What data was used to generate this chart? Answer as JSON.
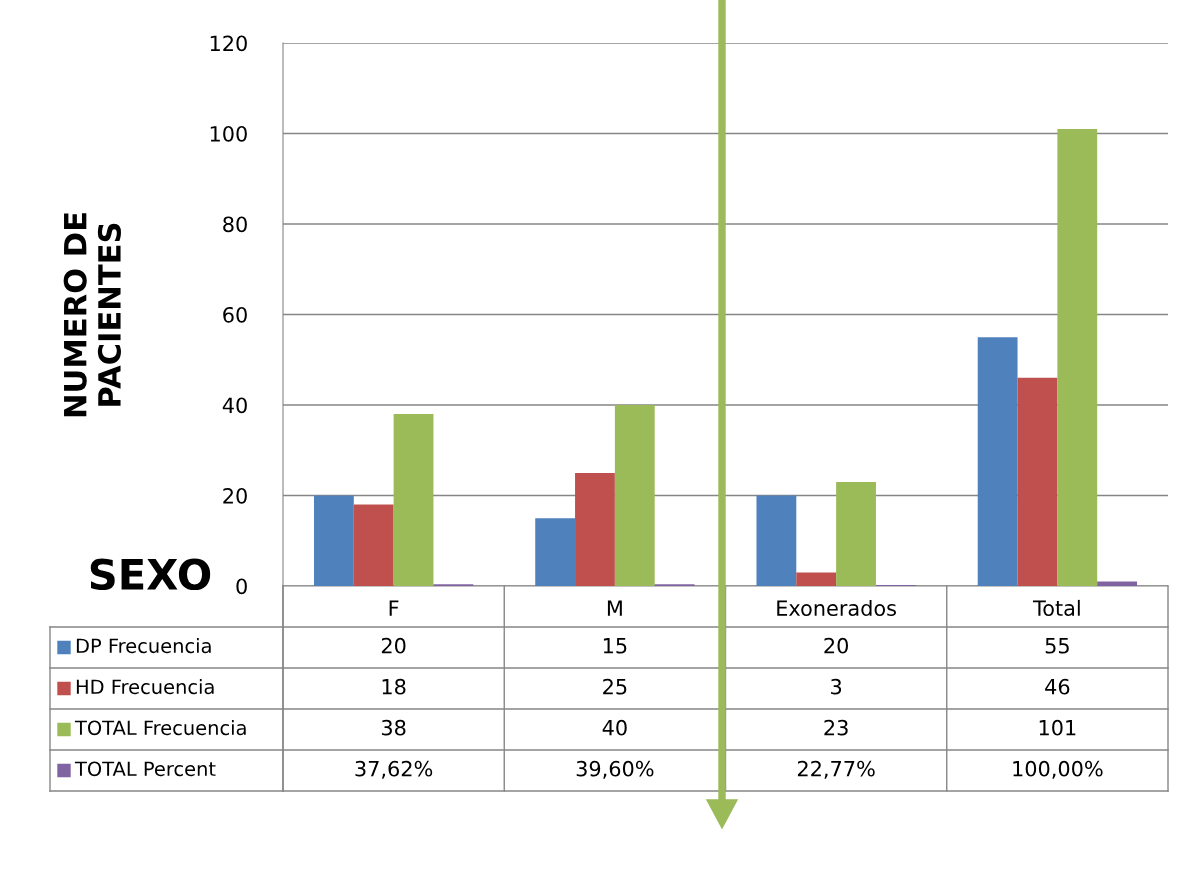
{
  "chart_data": {
    "type": "bar",
    "ylabel": "NUMERO DE\nPACIENTES",
    "categories": [
      "F",
      "M",
      "Exonerados",
      "Total"
    ],
    "series": [
      {
        "name": "DP Frecuencia",
        "color": "#4f81bd",
        "values": [
          20,
          15,
          20,
          55
        ],
        "value_labels": [
          "20",
          "15",
          "20",
          "55"
        ]
      },
      {
        "name": "HD Frecuencia",
        "color": "#c0504d",
        "values": [
          18,
          25,
          3,
          46
        ],
        "value_labels": [
          "18",
          "25",
          "3",
          "46"
        ]
      },
      {
        "name": "TOTAL Frecuencia",
        "color": "#9bbb59",
        "values": [
          38,
          40,
          23,
          101
        ],
        "value_labels": [
          "38",
          "40",
          "23",
          "101"
        ]
      },
      {
        "name": "TOTAL Percent",
        "color": "#8064a2",
        "values": [
          0.3762,
          0.396,
          0.2277,
          1.0
        ],
        "value_labels": [
          "37,62%",
          "39,60%",
          "22,77%",
          "100,00%"
        ]
      }
    ],
    "ylim": [
      0,
      120
    ],
    "yticks": [
      0,
      20,
      40,
      60,
      80,
      100,
      120
    ],
    "grid": "y",
    "legend": "bottom left",
    "annotations": [
      "SEXO"
    ]
  }
}
